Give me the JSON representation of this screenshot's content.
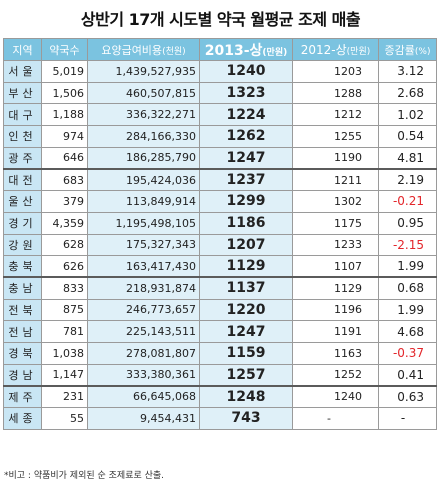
{
  "title": "상반기 17개 시도별 약국 월평균 조제 매출",
  "table": {
    "headers": [
      {
        "label": "지역",
        "unit": ""
      },
      {
        "label": "약국수",
        "unit": ""
      },
      {
        "label": "요양급여비용",
        "unit": "(천원)"
      },
      {
        "label": "2013-상",
        "unit": "(만원)"
      },
      {
        "label": "2012-상",
        "unit": "(만원)"
      },
      {
        "label": "증감률",
        "unit": "(%)"
      }
    ],
    "rows": [
      {
        "region": "서울",
        "pharmacies": "5,019",
        "benefit": "1,439,527,935",
        "y2013": "1240",
        "y2012": "1203",
        "change": "3.12"
      },
      {
        "region": "부산",
        "pharmacies": "1,506",
        "benefit": "460,507,815",
        "y2013": "1323",
        "y2012": "1288",
        "change": "2.68"
      },
      {
        "region": "대구",
        "pharmacies": "1,188",
        "benefit": "336,322,271",
        "y2013": "1224",
        "y2012": "1212",
        "change": "1.02"
      },
      {
        "region": "인천",
        "pharmacies": "974",
        "benefit": "284,166,330",
        "y2013": "1262",
        "y2012": "1255",
        "change": "0.54"
      },
      {
        "region": "광주",
        "pharmacies": "646",
        "benefit": "186,285,790",
        "y2013": "1247",
        "y2012": "1190",
        "change": "4.81"
      },
      {
        "region": "대전",
        "pharmacies": "683",
        "benefit": "195,424,036",
        "y2013": "1237",
        "y2012": "1211",
        "change": "2.19"
      },
      {
        "region": "울산",
        "pharmacies": "379",
        "benefit": "113,849,914",
        "y2013": "1299",
        "y2012": "1302",
        "change": "-0.21"
      },
      {
        "region": "경기",
        "pharmacies": "4,359",
        "benefit": "1,195,498,105",
        "y2013": "1186",
        "y2012": "1175",
        "change": "0.95"
      },
      {
        "region": "강원",
        "pharmacies": "628",
        "benefit": "175,327,343",
        "y2013": "1207",
        "y2012": "1233",
        "change": "-2.15"
      },
      {
        "region": "충북",
        "pharmacies": "626",
        "benefit": "163,417,430",
        "y2013": "1129",
        "y2012": "1107",
        "change": "1.99"
      },
      {
        "region": "충남",
        "pharmacies": "833",
        "benefit": "218,931,874",
        "y2013": "1137",
        "y2012": "1129",
        "change": "0.68"
      },
      {
        "region": "전북",
        "pharmacies": "875",
        "benefit": "246,773,657",
        "y2013": "1220",
        "y2012": "1196",
        "change": "1.99"
      },
      {
        "region": "전남",
        "pharmacies": "781",
        "benefit": "225,143,511",
        "y2013": "1247",
        "y2012": "1191",
        "change": "4.68"
      },
      {
        "region": "경북",
        "pharmacies": "1,038",
        "benefit": "278,081,807",
        "y2013": "1159",
        "y2012": "1163",
        "change": "-0.37"
      },
      {
        "region": "경남",
        "pharmacies": "1,147",
        "benefit": "333,380,361",
        "y2013": "1257",
        "y2012": "1252",
        "change": "0.41"
      },
      {
        "region": "제주",
        "pharmacies": "231",
        "benefit": "66,645,068",
        "y2013": "1248",
        "y2012": "1240",
        "change": "0.63"
      },
      {
        "region": "세종",
        "pharmacies": "55",
        "benefit": "9,454,431",
        "y2013": "743",
        "y2012": "-",
        "change": "-"
      }
    ]
  },
  "note": "*비고 : 약품비가 제외된 순 조제료로 산출."
}
